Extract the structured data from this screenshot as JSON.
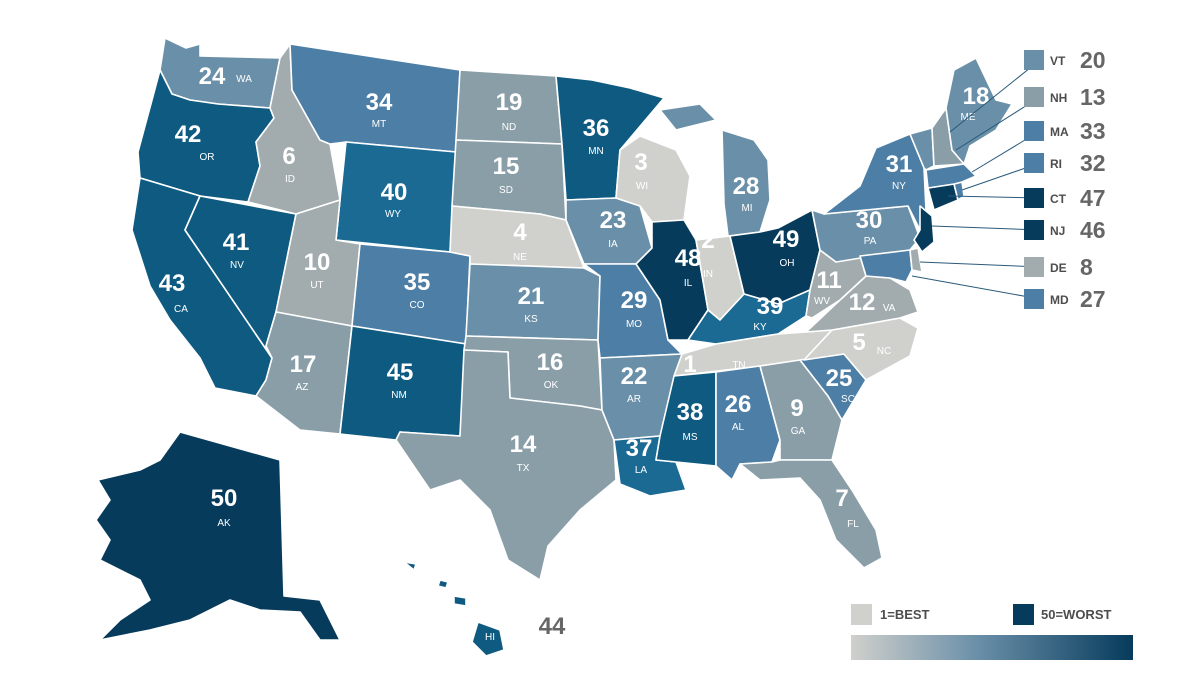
{
  "colors": {
    "tier1": "#d0d0cc",
    "tier2": "#a2acae",
    "tier3": "#8a9ea8",
    "tier4": "#6a8fa8",
    "tier5": "#4c7ea6",
    "tier6": "#1a6a94",
    "tier7": "#0e5a80",
    "tier8": "#063b5c"
  },
  "legend": {
    "best_label": "1=BEST",
    "worst_label": "50=WORST"
  },
  "chart_data": {
    "type": "choropleth",
    "scale": {
      "min": 1,
      "max": 50,
      "best": 1,
      "worst": 50
    },
    "states": [
      {
        "abbr": "WA",
        "rank": 24
      },
      {
        "abbr": "OR",
        "rank": 42
      },
      {
        "abbr": "CA",
        "rank": 43
      },
      {
        "abbr": "ID",
        "rank": 6
      },
      {
        "abbr": "NV",
        "rank": 41
      },
      {
        "abbr": "MT",
        "rank": 34
      },
      {
        "abbr": "WY",
        "rank": 40
      },
      {
        "abbr": "UT",
        "rank": 10
      },
      {
        "abbr": "AZ",
        "rank": 17
      },
      {
        "abbr": "CO",
        "rank": 35
      },
      {
        "abbr": "NM",
        "rank": 45
      },
      {
        "abbr": "ND",
        "rank": 19
      },
      {
        "abbr": "SD",
        "rank": 15
      },
      {
        "abbr": "NE",
        "rank": 4
      },
      {
        "abbr": "KS",
        "rank": 21
      },
      {
        "abbr": "OK",
        "rank": 16
      },
      {
        "abbr": "TX",
        "rank": 14
      },
      {
        "abbr": "MN",
        "rank": 36
      },
      {
        "abbr": "IA",
        "rank": 23
      },
      {
        "abbr": "MO",
        "rank": 29
      },
      {
        "abbr": "AR",
        "rank": 22
      },
      {
        "abbr": "LA",
        "rank": 37
      },
      {
        "abbr": "WI",
        "rank": 3
      },
      {
        "abbr": "IL",
        "rank": 48
      },
      {
        "abbr": "MI",
        "rank": 28
      },
      {
        "abbr": "IN",
        "rank": 2
      },
      {
        "abbr": "OH",
        "rank": 49
      },
      {
        "abbr": "KY",
        "rank": 39
      },
      {
        "abbr": "TN",
        "rank": 1
      },
      {
        "abbr": "MS",
        "rank": 38
      },
      {
        "abbr": "AL",
        "rank": 26
      },
      {
        "abbr": "GA",
        "rank": 9
      },
      {
        "abbr": "FL",
        "rank": 7
      },
      {
        "abbr": "SC",
        "rank": 25
      },
      {
        "abbr": "NC",
        "rank": 5
      },
      {
        "abbr": "VA",
        "rank": 12
      },
      {
        "abbr": "WV",
        "rank": 11
      },
      {
        "abbr": "PA",
        "rank": 30
      },
      {
        "abbr": "NY",
        "rank": 31
      },
      {
        "abbr": "ME",
        "rank": 18
      },
      {
        "abbr": "AK",
        "rank": 50
      },
      {
        "abbr": "HI",
        "rank": 44
      },
      {
        "abbr": "VT",
        "rank": 20
      },
      {
        "abbr": "NH",
        "rank": 13
      },
      {
        "abbr": "MA",
        "rank": 33
      },
      {
        "abbr": "RI",
        "rank": 32
      },
      {
        "abbr": "CT",
        "rank": 47
      },
      {
        "abbr": "NJ",
        "rank": 46
      },
      {
        "abbr": "DE",
        "rank": 8
      },
      {
        "abbr": "MD",
        "rank": 27
      }
    ]
  }
}
